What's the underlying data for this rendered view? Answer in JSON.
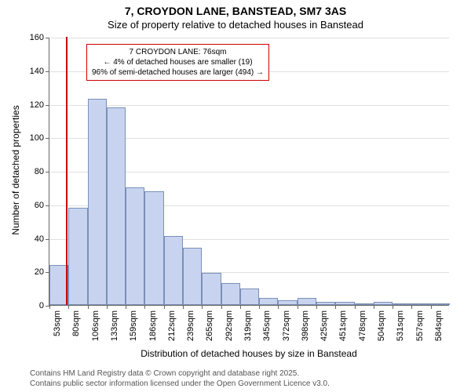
{
  "chart": {
    "type": "histogram",
    "title_main": "7, CROYDON LANE, BANSTEAD, SM7 3AS",
    "title_sub": "Size of property relative to detached houses in Banstead",
    "title_fontsize_main": 14,
    "title_fontsize_sub": 13,
    "y_label": "Number of detached properties",
    "x_label": "Distribution of detached houses by size in Banstead",
    "label_fontsize": 12,
    "tick_fontsize": 11,
    "ylim": [
      0,
      160
    ],
    "ytick_step": 20,
    "yticks": [
      0,
      20,
      40,
      60,
      80,
      100,
      120,
      140,
      160
    ],
    "xticks": [
      "53sqm",
      "80sqm",
      "106sqm",
      "133sqm",
      "159sqm",
      "186sqm",
      "212sqm",
      "239sqm",
      "265sqm",
      "292sqm",
      "319sqm",
      "345sqm",
      "372sqm",
      "398sqm",
      "425sqm",
      "451sqm",
      "478sqm",
      "504sqm",
      "531sqm",
      "557sqm",
      "584sqm"
    ],
    "values": [
      24,
      58,
      123,
      118,
      70,
      68,
      41,
      34,
      19,
      13,
      10,
      4,
      3,
      4,
      2,
      2,
      1,
      2,
      0,
      1,
      1
    ],
    "marker_position_sqm": 76,
    "bar_fill_color": "#c8d4ef",
    "bar_border_color": "#7a8fb8",
    "marker_color": "#cc0000",
    "background_color": "#ffffff",
    "grid_color": "#e0e0e0",
    "axis_color": "#666666",
    "annotation": {
      "line1": "7 CROYDON LANE: 76sqm",
      "line2": "← 4% of detached houses are smaller (19)",
      "line3": "96% of semi-detached houses are larger (494) →",
      "border_color": "#cc0000",
      "fontsize": 10
    },
    "footer_line1": "Contains HM Land Registry data © Crown copyright and database right 2025.",
    "footer_line2": "Contains public sector information licensed under the Open Government Licence v3.0.",
    "footer_color": "#555555"
  }
}
